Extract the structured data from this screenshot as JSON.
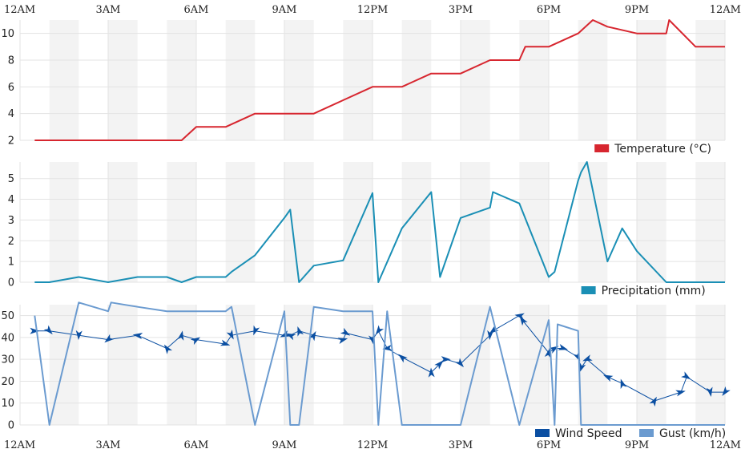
{
  "colors": {
    "temperature": "#d7262f",
    "precipitation": "#1a8fb5",
    "wind": "#0b4fa2",
    "gust": "#6b9bd0",
    "band": "#f3f3f3",
    "grid": "#e3e3e3"
  },
  "chart_data": [
    {
      "type": "line",
      "x_tick_labels": [
        "12AM",
        "3AM",
        "6AM",
        "9AM",
        "12PM",
        "3PM",
        "6PM",
        "9PM",
        "12AM"
      ],
      "xlim": [
        0,
        24
      ],
      "ylim": [
        2,
        11
      ],
      "y_ticks": [
        2,
        4,
        6,
        8,
        10
      ],
      "series": [
        {
          "name": "Temperature (°C)",
          "color": "#d7262f",
          "points": [
            [
              0.5,
              2
            ],
            [
              1,
              2
            ],
            [
              2,
              2
            ],
            [
              3,
              2
            ],
            [
              4,
              2
            ],
            [
              5,
              2
            ],
            [
              5.5,
              2
            ],
            [
              6,
              3
            ],
            [
              7,
              3
            ],
            [
              8,
              4
            ],
            [
              9,
              4
            ],
            [
              10,
              4
            ],
            [
              11,
              5
            ],
            [
              12,
              6
            ],
            [
              13,
              6
            ],
            [
              14,
              7
            ],
            [
              15,
              7
            ],
            [
              16,
              8
            ],
            [
              17,
              8
            ],
            [
              17.2,
              9
            ],
            [
              18,
              9
            ],
            [
              19,
              10
            ],
            [
              19.5,
              11
            ],
            [
              20,
              10.5
            ],
            [
              21,
              10
            ],
            [
              22,
              10
            ],
            [
              22.1,
              11
            ],
            [
              23,
              9
            ],
            [
              24,
              9
            ]
          ]
        }
      ]
    },
    {
      "type": "line",
      "x_tick_labels": [
        "12AM",
        "3AM",
        "6AM",
        "9AM",
        "12PM",
        "3PM",
        "6PM",
        "9PM",
        "12AM"
      ],
      "xlim": [
        0,
        24
      ],
      "ylim": [
        0,
        5.8
      ],
      "y_ticks": [
        0,
        1,
        2,
        3,
        4,
        5
      ],
      "series": [
        {
          "name": "Precipitation (mm)",
          "color": "#1a8fb5",
          "points": [
            [
              0.5,
              0
            ],
            [
              1,
              0
            ],
            [
              2,
              0.25
            ],
            [
              3,
              0
            ],
            [
              4,
              0.25
            ],
            [
              5,
              0.25
            ],
            [
              5.5,
              0
            ],
            [
              6,
              0.25
            ],
            [
              7,
              0.25
            ],
            [
              7.2,
              0.5
            ],
            [
              8,
              1.3
            ],
            [
              9,
              3.1
            ],
            [
              9.2,
              3.5
            ],
            [
              9.5,
              0
            ],
            [
              10,
              0.8
            ],
            [
              11,
              1.05
            ],
            [
              12,
              4.3
            ],
            [
              12.2,
              0
            ],
            [
              13,
              2.6
            ],
            [
              14,
              4.35
            ],
            [
              14.3,
              0.25
            ],
            [
              15,
              3.1
            ],
            [
              16,
              3.6
            ],
            [
              16.1,
              4.35
            ],
            [
              17,
              3.8
            ],
            [
              18,
              0.25
            ],
            [
              18.2,
              0.5
            ],
            [
              19,
              4.9
            ],
            [
              19.1,
              5.3
            ],
            [
              19.3,
              5.8
            ],
            [
              20,
              1
            ],
            [
              20.5,
              2.6
            ],
            [
              21,
              1.5
            ],
            [
              22,
              0
            ],
            [
              23,
              0
            ],
            [
              24,
              0
            ]
          ]
        }
      ]
    },
    {
      "type": "line",
      "x_tick_labels": [
        "12AM",
        "3AM",
        "6AM",
        "9AM",
        "12PM",
        "3PM",
        "6PM",
        "9PM",
        "12AM"
      ],
      "xlim": [
        0,
        24
      ],
      "ylim": [
        0,
        55
      ],
      "y_ticks": [
        0,
        10,
        20,
        30,
        40,
        50
      ],
      "series": [
        {
          "name": "Wind Speed",
          "color": "#0b4fa2",
          "points": [
            [
              0.5,
              43
            ],
            [
              1,
              43
            ],
            [
              2,
              41
            ],
            [
              3,
              39
            ],
            [
              4,
              41
            ],
            [
              5,
              35
            ],
            [
              5.5,
              41
            ],
            [
              6,
              39
            ],
            [
              7,
              37
            ],
            [
              7.2,
              41
            ],
            [
              8,
              43
            ],
            [
              9,
              41
            ],
            [
              9.2,
              41
            ],
            [
              9.5,
              43
            ],
            [
              10,
              41
            ],
            [
              11,
              39
            ],
            [
              11.1,
              42
            ],
            [
              12,
              39
            ],
            [
              12.2,
              43
            ],
            [
              12.5,
              35
            ],
            [
              13,
              31
            ],
            [
              14,
              24
            ],
            [
              14.3,
              28
            ],
            [
              14.5,
              30
            ],
            [
              15,
              28
            ],
            [
              16,
              41
            ],
            [
              16.1,
              43
            ],
            [
              17,
              50
            ],
            [
              17.1,
              48
            ],
            [
              18,
              33
            ],
            [
              18.2,
              35
            ],
            [
              18.5,
              35
            ],
            [
              19,
              31
            ],
            [
              19.1,
              26
            ],
            [
              19.3,
              30
            ],
            [
              20,
              22
            ],
            [
              20.5,
              19
            ],
            [
              21.6,
              11
            ],
            [
              22.5,
              15
            ],
            [
              22.7,
              22
            ],
            [
              23.5,
              15
            ],
            [
              24,
              15
            ]
          ]
        },
        {
          "name": "Gust (km/h)",
          "color": "#6b9bd0",
          "points": [
            [
              0.5,
              50
            ],
            [
              1,
              0
            ],
            [
              2,
              56
            ],
            [
              3,
              52
            ],
            [
              3.1,
              56
            ],
            [
              4,
              54
            ],
            [
              5,
              52
            ],
            [
              6,
              52
            ],
            [
              7,
              52
            ],
            [
              7.2,
              54
            ],
            [
              8,
              0
            ],
            [
              9,
              52
            ],
            [
              9.2,
              0
            ],
            [
              9.5,
              0
            ],
            [
              10,
              54
            ],
            [
              11,
              52
            ],
            [
              12,
              52
            ],
            [
              12.2,
              0
            ],
            [
              12.5,
              52
            ],
            [
              13,
              0
            ],
            [
              14,
              0
            ],
            [
              15,
              0
            ],
            [
              16,
              54
            ],
            [
              17,
              0
            ],
            [
              18,
              48
            ],
            [
              18.2,
              0
            ],
            [
              18.3,
              46
            ],
            [
              19,
              43
            ],
            [
              19.1,
              0
            ],
            [
              20,
              0
            ],
            [
              21,
              0
            ],
            [
              22,
              0
            ],
            [
              23,
              0
            ],
            [
              24,
              0
            ]
          ]
        }
      ]
    }
  ]
}
